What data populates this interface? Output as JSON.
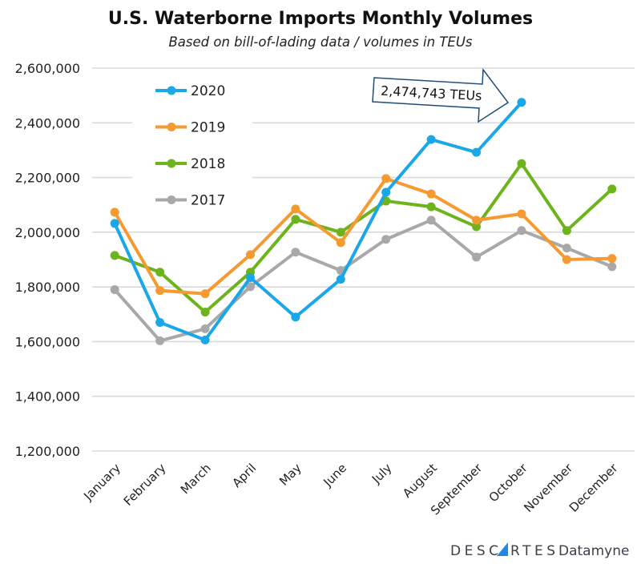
{
  "chart_data": {
    "type": "line",
    "title": "U.S. Waterborne Imports Monthly Volumes",
    "subtitle": "Based on bill-of-lading data / volumes in TEUs",
    "xlabel": "",
    "ylabel": "",
    "ylim": [
      1200000,
      2600000
    ],
    "yticks": [
      "1,200,000",
      "1,400,000",
      "1,600,000",
      "1,800,000",
      "2,000,000",
      "2,200,000",
      "2,400,000",
      "2,600,000"
    ],
    "ytick_values": [
      1200000,
      1400000,
      1600000,
      1800000,
      2000000,
      2200000,
      2400000,
      2600000
    ],
    "categories": [
      "January",
      "February",
      "March",
      "April",
      "May",
      "June",
      "July",
      "August",
      "September",
      "October",
      "November",
      "December"
    ],
    "grid": "horizontal",
    "legend_position": "top-left",
    "series": [
      {
        "name": "2020",
        "color": "#1aa7e8",
        "values": [
          2032000,
          1670000,
          1606000,
          1834000,
          1690000,
          1828000,
          2146000,
          2339000,
          2292000,
          2474743,
          null,
          null
        ]
      },
      {
        "name": "2019",
        "color": "#f59a30",
        "values": [
          2073000,
          1787000,
          1775000,
          1918000,
          2085000,
          1962000,
          2196000,
          2140000,
          2044000,
          2067000,
          1900000,
          1904000
        ]
      },
      {
        "name": "2018",
        "color": "#6db31c",
        "values": [
          1915000,
          1854000,
          1708000,
          1854000,
          2047000,
          2000000,
          2114000,
          2093000,
          2020000,
          2251000,
          2006000,
          2158000
        ]
      },
      {
        "name": "2017",
        "color": "#a8a8a8",
        "values": [
          1790000,
          1603000,
          1647000,
          1801000,
          1927000,
          1860000,
          1974000,
          2044000,
          1909000,
          2006000,
          1942000,
          1874000
        ]
      }
    ],
    "annotation": {
      "text": "2,474,743 TEUs",
      "border_color": "#1f4e79"
    }
  },
  "logo": {
    "text": "DESCARTES Datamyne",
    "part1": "DESC",
    "part2": "RTES",
    "part3": "Datamyne",
    "accent": "#1e88e5"
  }
}
